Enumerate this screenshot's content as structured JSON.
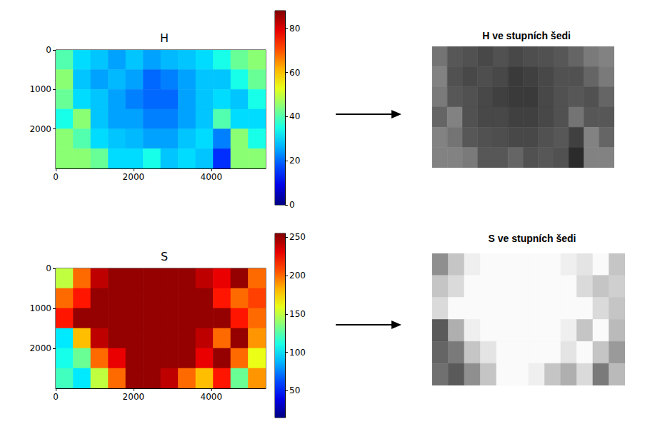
{
  "chart_data": [
    {
      "type": "heatmap",
      "title": "H",
      "color": "jet",
      "grid": false,
      "xlim": [
        0,
        5400
      ],
      "xticks": [
        0,
        2000,
        4000
      ],
      "ylim": [
        3000,
        0
      ],
      "yticks": [
        0,
        1000,
        2000
      ],
      "x_edges": [
        0,
        450,
        900,
        1350,
        1800,
        2250,
        2700,
        3150,
        3600,
        4050,
        4500,
        4950,
        5400
      ],
      "y_edges": [
        0,
        500,
        1000,
        1500,
        2000,
        2500,
        3000
      ],
      "cells": [
        [
          40,
          30,
          28,
          25,
          28,
          25,
          27,
          28,
          30,
          35,
          42,
          45
        ],
        [
          45,
          28,
          25,
          27,
          25,
          20,
          22,
          25,
          28,
          28,
          35,
          42
        ],
        [
          42,
          30,
          28,
          25,
          22,
          20,
          20,
          25,
          28,
          30,
          28,
          35
        ],
        [
          35,
          45,
          28,
          25,
          25,
          22,
          22,
          25,
          28,
          40,
          30,
          30
        ],
        [
          45,
          40,
          30,
          28,
          27,
          25,
          25,
          28,
          30,
          22,
          45,
          35
        ],
        [
          45,
          45,
          42,
          30,
          30,
          35,
          28,
          30,
          28,
          15,
          45,
          45
        ]
      ],
      "colorbar_range": [
        0,
        88
      ],
      "colorbar_ticks": [
        0,
        20,
        40,
        60,
        80
      ],
      "grayscale": {
        "title": "H ve stupních šedi",
        "color": "gray",
        "tick_labels": false
      }
    },
    {
      "type": "heatmap",
      "title": "S",
      "color": "jet",
      "grid": false,
      "xlim": [
        0,
        5400
      ],
      "xticks": [
        0,
        2000,
        4000
      ],
      "ylim": [
        3000,
        0
      ],
      "yticks": [
        0,
        1000,
        2000
      ],
      "x_edges": [
        0,
        450,
        900,
        1350,
        1800,
        2250,
        2700,
        3150,
        3600,
        4050,
        4500,
        4950,
        5400
      ],
      "y_edges": [
        0,
        500,
        1000,
        1500,
        2000,
        2500,
        3000
      ],
      "cells": [
        [
          150,
          200,
          240,
          250,
          250,
          250,
          250,
          250,
          240,
          230,
          250,
          200
        ],
        [
          200,
          220,
          250,
          250,
          250,
          250,
          250,
          250,
          250,
          220,
          200,
          210
        ],
        [
          220,
          250,
          250,
          250,
          250,
          250,
          250,
          250,
          250,
          250,
          220,
          200
        ],
        [
          100,
          180,
          240,
          250,
          250,
          250,
          250,
          250,
          240,
          200,
          250,
          190
        ],
        [
          110,
          130,
          200,
          230,
          250,
          250,
          250,
          250,
          230,
          250,
          200,
          160
        ],
        [
          120,
          100,
          150,
          200,
          250,
          250,
          240,
          200,
          180,
          220,
          130,
          190
        ]
      ],
      "colorbar_range": [
        15,
        255
      ],
      "colorbar_ticks": [
        50,
        100,
        150,
        200,
        250
      ],
      "grayscale": {
        "title": "S ve stupních šedi",
        "color": "gray",
        "tick_labels": false
      }
    }
  ]
}
